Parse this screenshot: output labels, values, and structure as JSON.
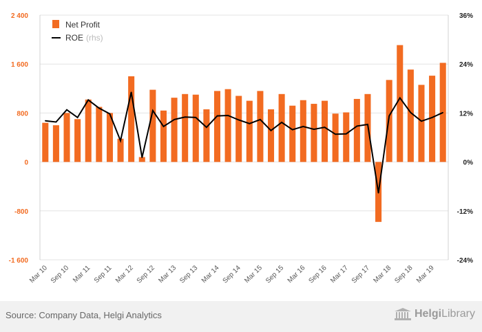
{
  "chart_data": {
    "type": "bar",
    "categories": [
      "Mar 10",
      "Jun 10",
      "Sep 10",
      "Dec 10",
      "Mar 11",
      "Jun 11",
      "Sep 11",
      "Dec 11",
      "Mar 12",
      "Jun 12",
      "Sep 12",
      "Dec 12",
      "Mar 13",
      "Jun 13",
      "Sep 13",
      "Dec 13",
      "Mar 14",
      "Jun 14",
      "Sep 14",
      "Dec 14",
      "Mar 15",
      "Jun 15",
      "Sep 15",
      "Dec 15",
      "Mar 16",
      "Jun 16",
      "Sep 16",
      "Dec 16",
      "Mar 17",
      "Jun 17",
      "Sep 17",
      "Dec 17",
      "Mar 18",
      "Jun 18",
      "Sep 18",
      "Dec 18",
      "Mar 19",
      "Jun 19"
    ],
    "x_tick_labels": [
      "Mar 10",
      "Sep 10",
      "Mar 11",
      "Sep 11",
      "Mar 12",
      "Sep 12",
      "Mar 13",
      "Sep 13",
      "Mar 14",
      "Sep 14",
      "Mar 15",
      "Sep 15",
      "Mar 16",
      "Sep 16",
      "Mar 17",
      "Sep 17",
      "Mar 18",
      "Sep 18",
      "Mar 19"
    ],
    "series": [
      {
        "name": "Net Profit",
        "axis": "left",
        "kind": "bar",
        "color": "#f26b21",
        "values": [
          640,
          600,
          800,
          700,
          1020,
          900,
          800,
          380,
          1400,
          80,
          1180,
          840,
          1050,
          1110,
          1100,
          860,
          1160,
          1190,
          1080,
          1000,
          1160,
          860,
          1110,
          920,
          1010,
          950,
          1000,
          790,
          810,
          1030,
          1110,
          -980,
          1340,
          1910,
          1510,
          1260,
          1410,
          1620
        ]
      },
      {
        "name": "ROE",
        "name_suffix": "(rhs)",
        "axis": "right",
        "kind": "line",
        "color": "#000000",
        "values": [
          10.1,
          9.8,
          12.8,
          10.9,
          15.2,
          13.2,
          11.8,
          5.2,
          17.1,
          1.1,
          12.6,
          8.7,
          10.4,
          11.0,
          10.9,
          8.5,
          11.3,
          11.4,
          10.3,
          9.4,
          10.4,
          7.7,
          9.7,
          7.9,
          8.7,
          8.0,
          8.5,
          6.8,
          6.9,
          8.8,
          9.2,
          -7.6,
          11.3,
          15.7,
          12.1,
          10.0,
          10.9,
          12.1
        ]
      }
    ],
    "y_left": {
      "ylim": [
        -1600,
        2400
      ],
      "ticks": [
        "-1 600",
        "-800",
        "0",
        "800",
        "1 600",
        "2 400"
      ],
      "tick_values": [
        -1600,
        -800,
        0,
        800,
        1600,
        2400
      ]
    },
    "y_right": {
      "ylim": [
        -24,
        36
      ],
      "ticks": [
        "-24%",
        "-12%",
        "0%",
        "12%",
        "24%",
        "36%"
      ],
      "tick_values": [
        -24,
        -12,
        0,
        12,
        24,
        36
      ]
    },
    "grid": true,
    "legend_position": "top-left"
  },
  "footer": {
    "source": "Source: Company Data, Helgi Analytics",
    "logo_part1": "Helgi",
    "logo_part2": "Library"
  }
}
